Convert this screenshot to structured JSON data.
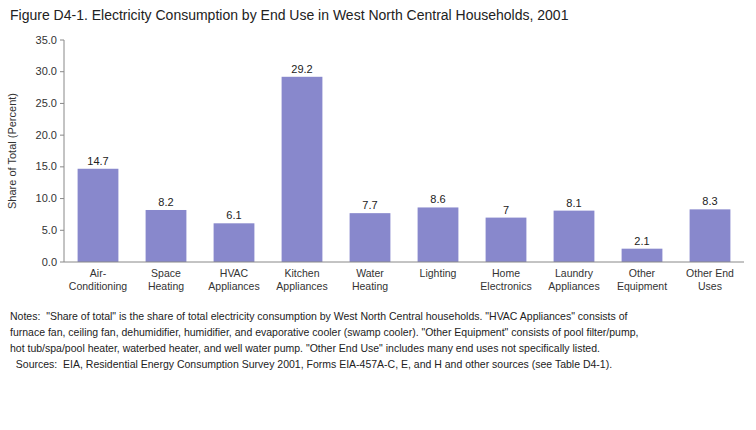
{
  "chart_data": {
    "type": "bar",
    "title": "Figure D4-1. Electricity Consumption by End Use in West North Central Households, 2001",
    "categories": [
      "Air-\nConditioning",
      "Space\nHeating",
      "HVAC\nAppliances",
      "Kitchen\nAppliances",
      "Water\nHeating",
      "Lighting",
      "Home\nElectronics",
      "Laundry\nAppliances",
      "Other\nEquipment",
      "Other End\nUses"
    ],
    "values": [
      14.7,
      8.2,
      6.1,
      29.2,
      7.7,
      8.6,
      7.0,
      8.1,
      2.1,
      8.3
    ],
    "color": "#8888cc",
    "ylabel": "Share of Total (Percent)",
    "ylim": [
      0,
      35.0
    ],
    "yticks": [
      {
        "value": 0.0,
        "label": "0.0"
      },
      {
        "value": 5.0,
        "label": "5.0"
      },
      {
        "value": 10.0,
        "label": "10.0"
      },
      {
        "value": 15.0,
        "label": "15.0"
      },
      {
        "value": 20.0,
        "label": "20.0"
      },
      {
        "value": 25.0,
        "label": "25.0"
      },
      {
        "value": 30.0,
        "label": "30.0"
      },
      {
        "value": 35.0,
        "label": "35.0"
      }
    ],
    "grid": false,
    "data_labels": true,
    "annotations": [
      "Notes:  \"Share of total\" is the share of total electricity consumption by West North Central households. \"HVAC Appliances\" consists of",
      "furnace fan, ceiling fan, dehumidifier, humidifier, and evaporative cooler (swamp cooler). \"Other Equipment\" consists of pool filter/pump,",
      "hot tub/spa/pool heater, waterbed heater, and well water pump. \"Other End Use\" includes many end uses not specifically listed.",
      "  Sources:  EIA, Residential Energy Consumption Survey 2001, Forms EIA-457A-C, E, and H and other sources (see Table D4-1)."
    ]
  }
}
